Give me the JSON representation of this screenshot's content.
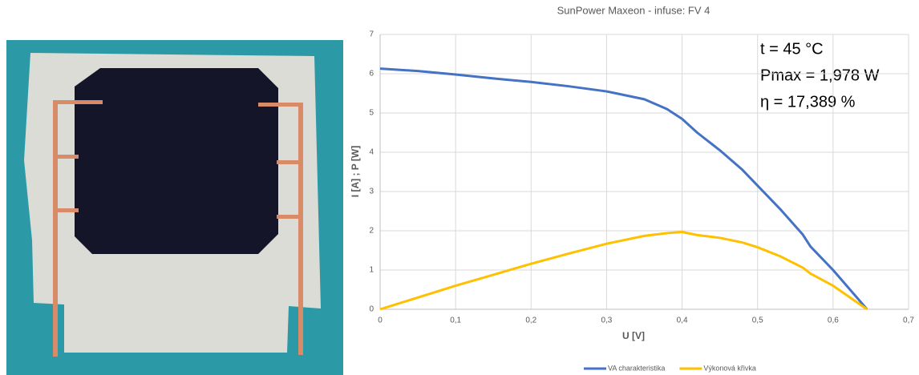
{
  "chart_data": {
    "type": "line",
    "title": "SunPower Maxeon - infuse: FV 4",
    "x_label": "U [V]",
    "y_label": "I [A] ; P [W]",
    "annotations": [
      "t = 45 °C",
      "Pmax = 1,978 W",
      "η = 17,389 %"
    ],
    "x": [
      0,
      0.05,
      0.1,
      0.15,
      0.2,
      0.25,
      0.3,
      0.35,
      0.38,
      0.4,
      0.42,
      0.45,
      0.48,
      0.5,
      0.53,
      0.56,
      0.57,
      0.6,
      0.645
    ],
    "series": [
      {
        "name": "VA charakteristika",
        "color": "#4472c4",
        "values": [
          6.13,
          6.07,
          5.98,
          5.88,
          5.79,
          5.68,
          5.55,
          5.35,
          5.1,
          4.85,
          4.5,
          4.05,
          3.55,
          3.15,
          2.55,
          1.9,
          1.6,
          1.0,
          0
        ]
      },
      {
        "name": "Výkonová křivka",
        "color": "#ffc000",
        "values": [
          0,
          0.3,
          0.6,
          0.88,
          1.16,
          1.42,
          1.67,
          1.87,
          1.94,
          1.97,
          1.89,
          1.82,
          1.7,
          1.58,
          1.35,
          1.06,
          0.91,
          0.6,
          0
        ]
      }
    ],
    "xlim": [
      0,
      0.7
    ],
    "xticks": [
      0,
      {
        "value": 0.1,
        "label": "0,1"
      },
      {
        "value": 0.2,
        "label": "0,2"
      },
      {
        "value": 0.3,
        "label": "0,3"
      },
      {
        "value": 0.4,
        "label": "0,4"
      },
      {
        "value": 0.5,
        "label": "0,5"
      },
      {
        "value": 0.6,
        "label": "0,6"
      },
      {
        "value": 0.7,
        "label": "0,7"
      }
    ],
    "ylim": [
      0,
      7
    ],
    "yticks": [
      0,
      1,
      2,
      3,
      4,
      5,
      6,
      7
    ],
    "grid": true
  }
}
